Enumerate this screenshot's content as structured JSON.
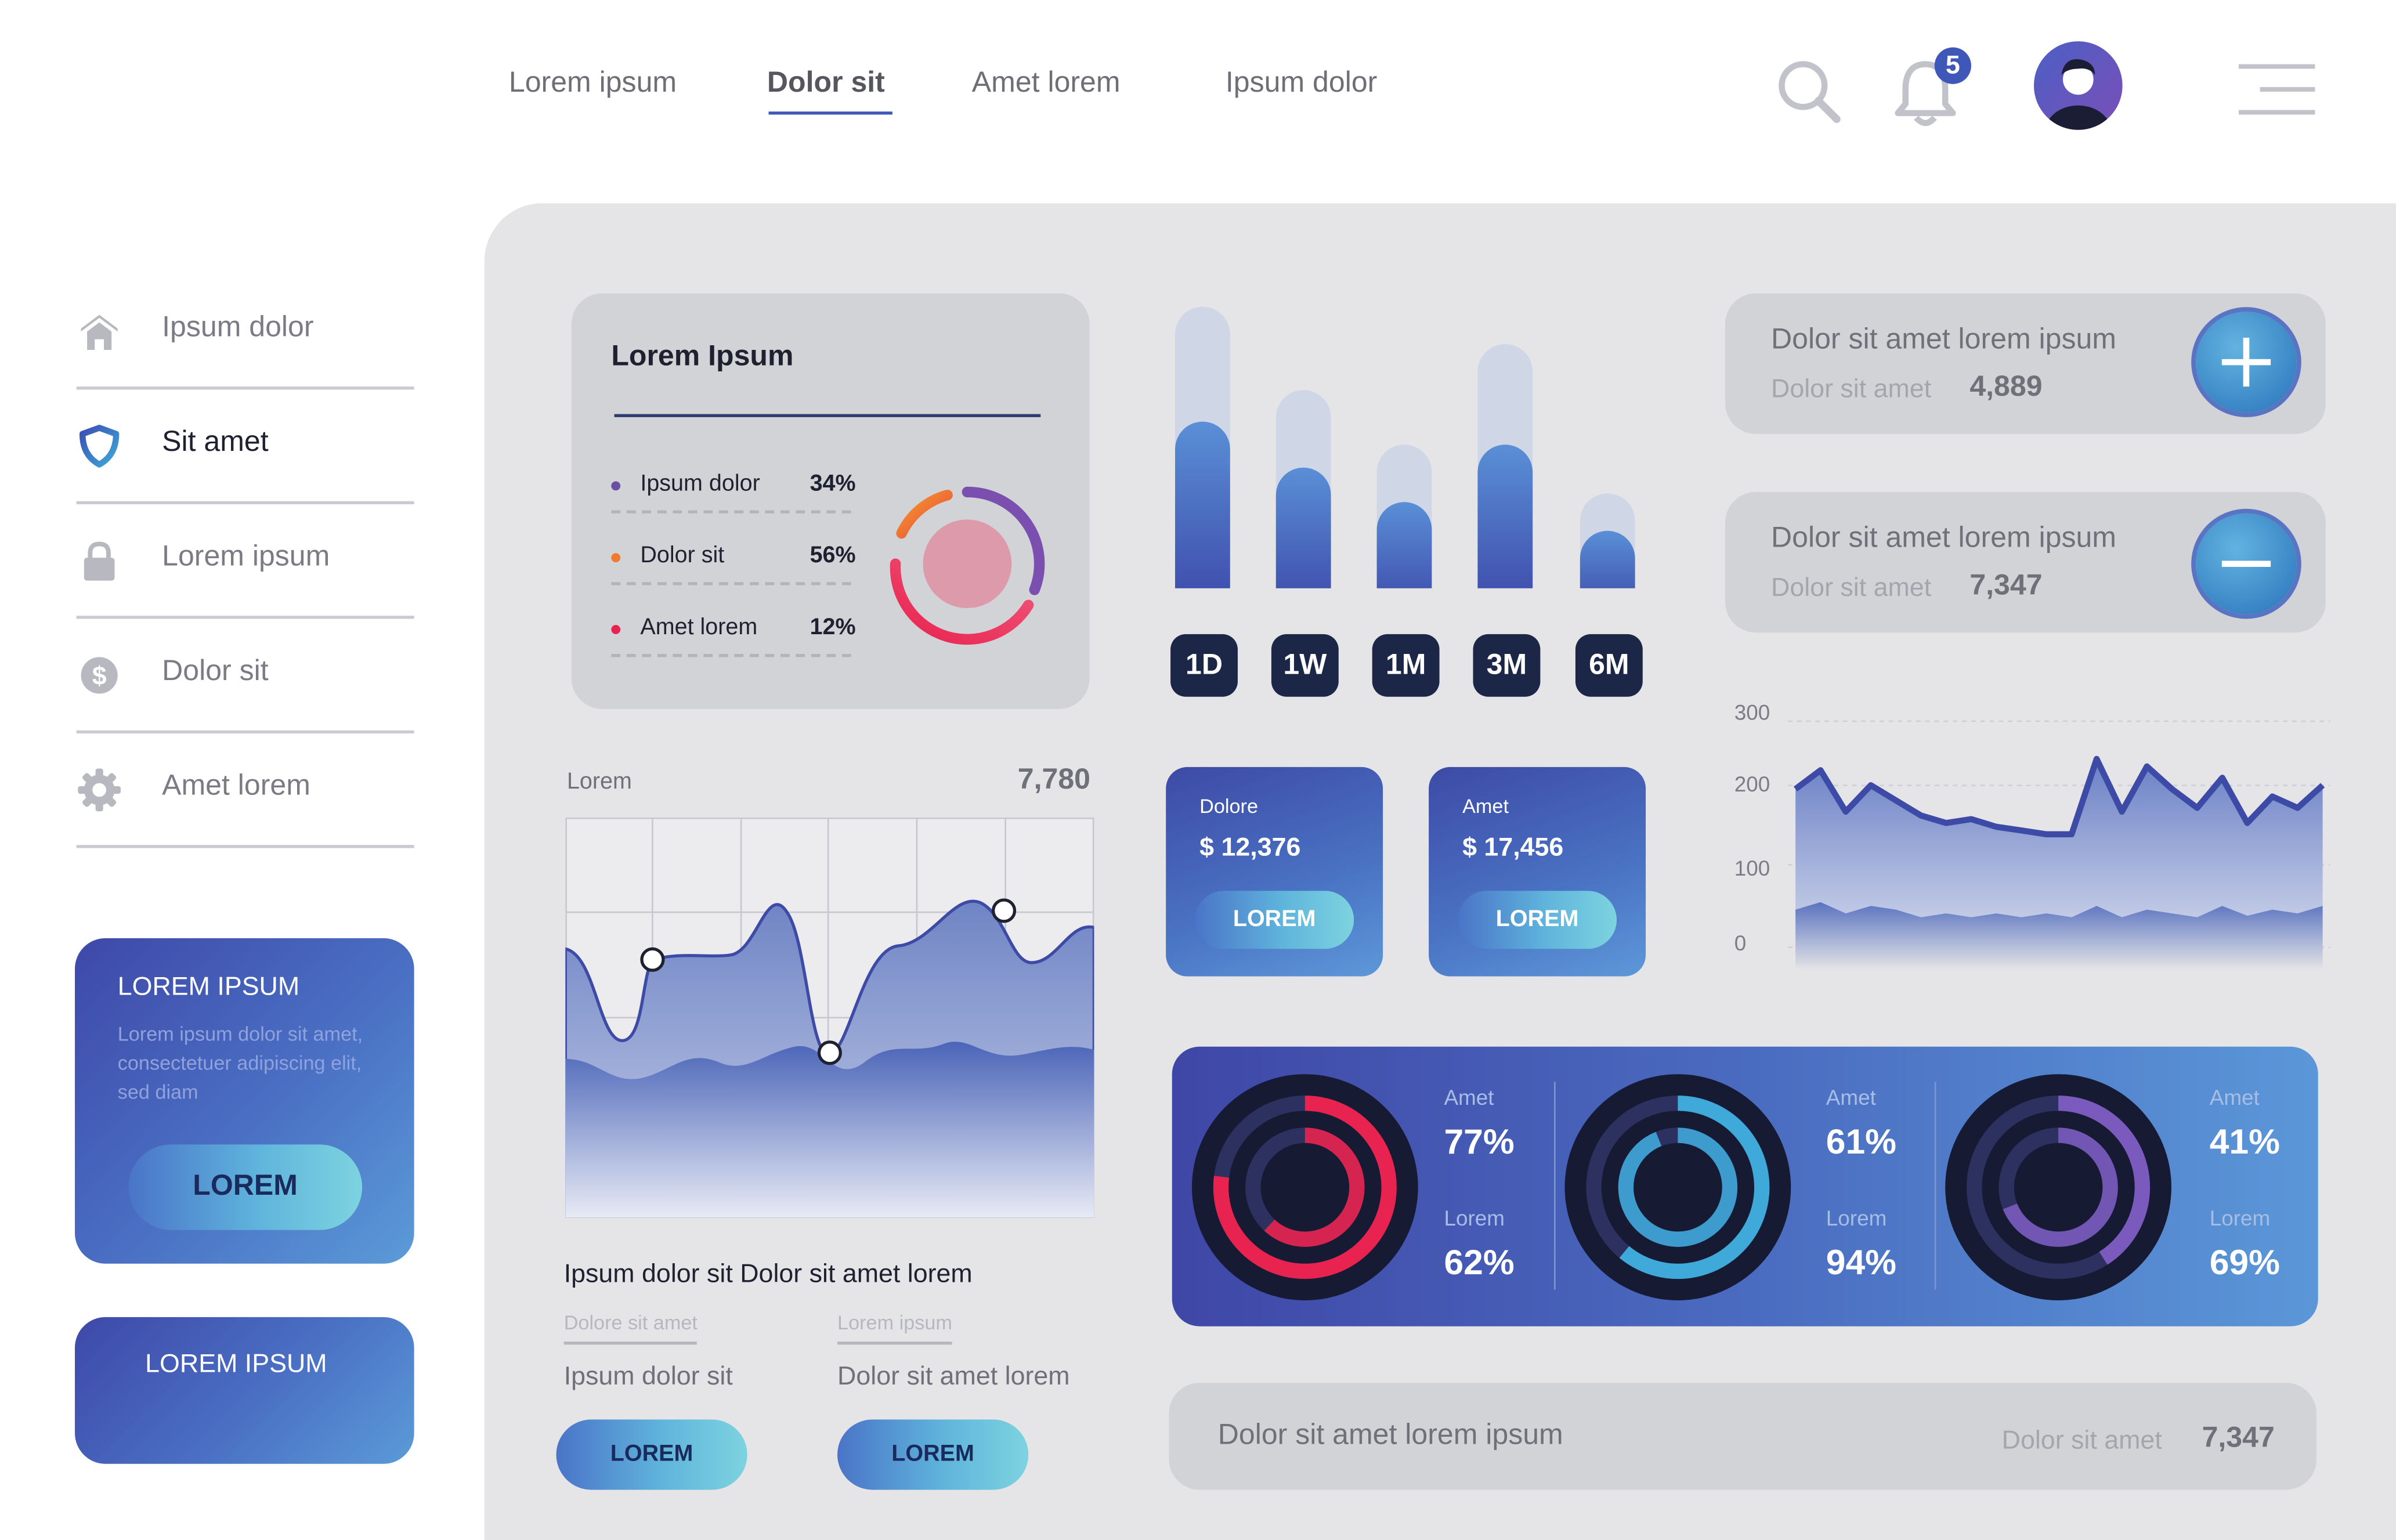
{
  "nav": {
    "tabs": [
      "Lorem ipsum",
      "Dolor sit",
      "Amet lorem",
      "Ipsum dolor"
    ],
    "active_tab": "Dolor sit",
    "notification_count": "5"
  },
  "sidebar": {
    "items": [
      {
        "label": "Ipsum dolor",
        "icon": "home-icon"
      },
      {
        "label": "Sit amet",
        "icon": "shield-icon"
      },
      {
        "label": "Lorem ipsum",
        "icon": "lock-icon"
      },
      {
        "label": "Dolor sit",
        "icon": "dollar-icon"
      },
      {
        "label": "Amet lorem",
        "icon": "gear-icon"
      }
    ],
    "active_item": "Sit amet",
    "promo1": {
      "title": "LOREM IPSUM",
      "text": [
        "Lorem ipsum dolor sit amet,",
        "consectetuer adipiscing elit,",
        "sed diam"
      ],
      "button": "LOREM"
    },
    "promo2": {
      "title": "LOREM IPSUM"
    }
  },
  "breakdown_card": {
    "title": "Lorem Ipsum",
    "rows": [
      {
        "label": "Ipsum dolor",
        "value": "34%",
        "color": "#6a4fa3"
      },
      {
        "label": "Dolor sit",
        "value": "56%",
        "color": "#f07a2d"
      },
      {
        "label": "Amet lorem",
        "value": "12%",
        "color": "#e8234f"
      }
    ]
  },
  "bar_periods": [
    "1D",
    "1W",
    "1M",
    "3M",
    "6M"
  ],
  "bar_levels": [
    {
      "total": 0.98,
      "filled": 0.58
    },
    {
      "total": 0.69,
      "filled": 0.42
    },
    {
      "total": 0.5,
      "filled": 0.3
    },
    {
      "total": 0.85,
      "filled": 0.5
    },
    {
      "total": 0.33,
      "filled": 0.2
    }
  ],
  "mini_cards": [
    {
      "title": "Dolore",
      "value": "$ 12,376",
      "button": "LOREM"
    },
    {
      "title": "Amet",
      "value": "$ 17,456",
      "button": "LOREM"
    }
  ],
  "stat_cards": [
    {
      "title": "Dolor sit amet lorem ipsum",
      "sub": "Dolor sit amet",
      "value": "4,889",
      "action": "plus-icon"
    },
    {
      "title": "Dolor sit amet lorem ipsum",
      "sub": "Dolor sit amet",
      "value": "7,347",
      "action": "minus-icon"
    }
  ],
  "area_chart": {
    "label": "Lorem",
    "value": "7,780"
  },
  "line_chart_ticks": [
    "300",
    "200",
    "100",
    "0"
  ],
  "chart_data": {
    "type": "area",
    "y_ticks": [
      300,
      200,
      100,
      0
    ],
    "ylim": [
      0,
      300
    ],
    "series": [
      {
        "values": [
          210,
          235,
          180,
          215,
          195,
          175,
          165,
          170,
          160,
          155,
          150,
          150,
          250,
          180,
          240,
          210,
          185,
          225,
          165,
          200,
          185,
          215
        ]
      },
      {
        "values": [
          50,
          60,
          45,
          55,
          50,
          40,
          45,
          40,
          45,
          40,
          45,
          40,
          55,
          40,
          50,
          45,
          40,
          55,
          42,
          50,
          45,
          55
        ]
      }
    ]
  },
  "summary": {
    "headline": "Ipsum dolor sit Dolor sit amet lorem",
    "cols": [
      {
        "sub": "Dolore sit amet",
        "text": "Ipsum dolor sit",
        "button": "LOREM"
      },
      {
        "sub": "Lorem ipsum",
        "text": "Dolor sit amet lorem",
        "button": "LOREM"
      }
    ]
  },
  "donuts": [
    {
      "l1": "Amet",
      "v1": "77%",
      "l2": "Lorem",
      "v2": "62%",
      "color": "#e8234f",
      "p1": 0.77,
      "p2": 0.62
    },
    {
      "l1": "Amet",
      "v1": "61%",
      "l2": "Lorem",
      "v2": "94%",
      "color": "#3fa9d9",
      "p1": 0.61,
      "p2": 0.94
    },
    {
      "l1": "Amet",
      "v1": "41%",
      "l2": "Lorem",
      "v2": "69%",
      "color": "#7a5bbd",
      "p1": 0.41,
      "p2": 0.69
    }
  ],
  "footer_bar": {
    "title": "Dolor sit amet lorem ipsum",
    "sub": "Dolor sit amet",
    "value": "7,347"
  }
}
